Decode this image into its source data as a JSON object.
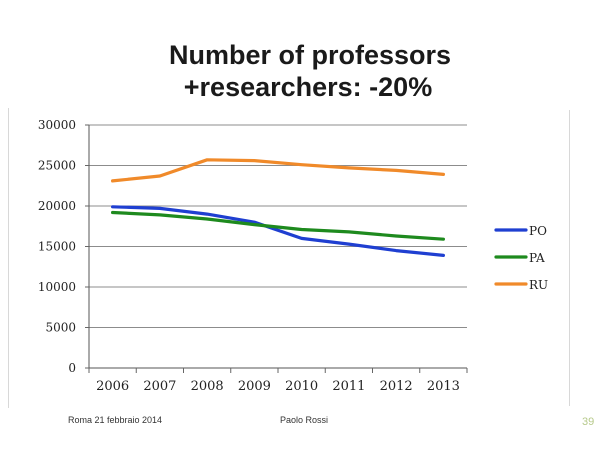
{
  "slide": {
    "title_line1": "Number of professors",
    "title_line2": "+researchers: -20%",
    "footer_left": "Roma 21 febbraio 2014",
    "footer_center": "Paolo Rossi",
    "page_number": "39"
  },
  "chart_data": {
    "type": "line",
    "title": "",
    "xlabel": "",
    "ylabel": "",
    "x": [
      "2006",
      "2007",
      "2008",
      "2009",
      "2010",
      "2011",
      "2012",
      "2013"
    ],
    "ylim": [
      0,
      30000
    ],
    "yticks": [
      0,
      5000,
      10000,
      15000,
      20000,
      25000,
      30000
    ],
    "grid": true,
    "legend_position": "right",
    "series": [
      {
        "name": "PO",
        "color": "#1f3fd1",
        "values": [
          19900,
          19700,
          19000,
          18000,
          16000,
          15300,
          14500,
          13900
        ]
      },
      {
        "name": "PA",
        "color": "#1e8a1e",
        "values": [
          19200,
          18900,
          18400,
          17700,
          17100,
          16800,
          16300,
          15900
        ]
      },
      {
        "name": "RU",
        "color": "#f08a2a",
        "values": [
          23100,
          23700,
          25700,
          25600,
          25100,
          24700,
          24400,
          23900
        ]
      }
    ]
  }
}
